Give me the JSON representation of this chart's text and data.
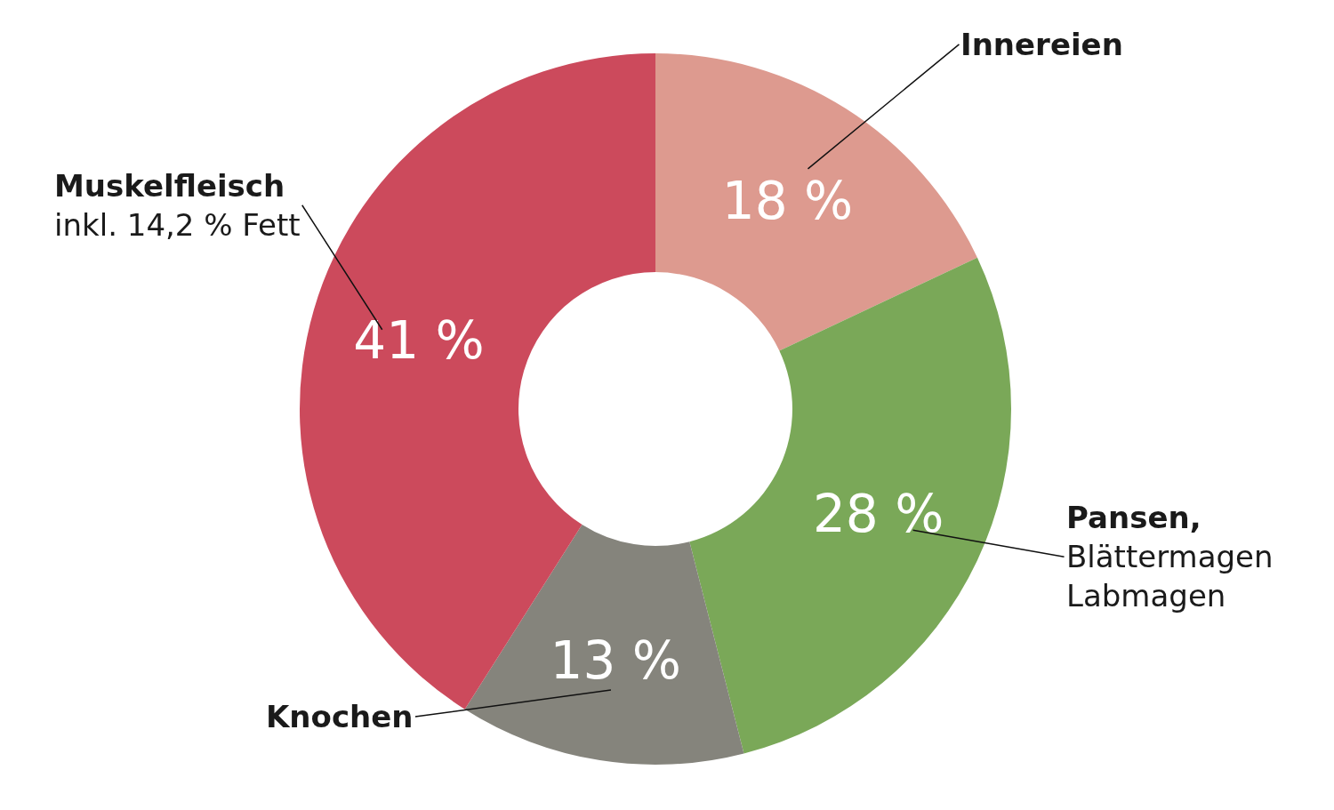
{
  "chart_data": {
    "type": "donut",
    "categories": [
      "Innereien",
      "Pansen,\nBlättermagen\nLabmagen",
      "Knochen",
      "Muskelfleisch\ninkl. 14,2 % Fett"
    ],
    "values": [
      18,
      28,
      13,
      41
    ],
    "value_labels": [
      "18 %",
      "28 %",
      "13 %",
      "41 %"
    ],
    "colors": [
      "#dd9a8f",
      "#7aa858",
      "#85847c",
      "#cc4a5c"
    ],
    "legend": false
  }
}
